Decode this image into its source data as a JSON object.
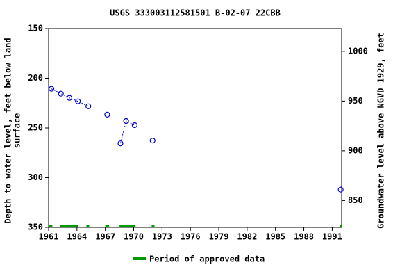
{
  "chart_data": {
    "type": "line",
    "title": "USGS 333003112581501 B-02-07 22CBB",
    "ylabel": [
      "Depth to water level, feet below land",
      "surface"
    ],
    "y2label": "Groundwater level above NGVD 1929, feet",
    "x": [
      1961.3,
      1962.3,
      1963.2,
      1964.1,
      1965.2,
      1966,
      1967.2,
      1968,
      1968.6,
      1969.2,
      1970.1,
      1971,
      1972.0,
      1980,
      1991.9
    ],
    "series": [
      {
        "name": "Depth to water level",
        "color": "#0000cc",
        "values": [
          210.6,
          215.5,
          219.7,
          223.2,
          228.2,
          null,
          236.6,
          null,
          265.5,
          243,
          247.2,
          null,
          262.7,
          null,
          312
        ]
      }
    ],
    "xlim": [
      1961,
      1992
    ],
    "xticks": [
      1961,
      1964,
      1967,
      1970,
      1973,
      1976,
      1979,
      1982,
      1985,
      1988,
      1991
    ],
    "ylim": [
      150,
      350
    ],
    "yticks": [
      150,
      200,
      250,
      300,
      350
    ],
    "y2lim": [
      1023,
      823
    ],
    "y2ticks": [
      850,
      900,
      950,
      1000
    ],
    "approved_periods": {
      "name": "Period of approved data",
      "color": "#009900",
      "ranges": [
        [
          1961,
          1961.4
        ],
        [
          1962.2,
          1964.1
        ],
        [
          1965,
          1965.3
        ],
        [
          1967,
          1967.4
        ],
        [
          1968.5,
          1970.2
        ],
        [
          1971.9,
          1972.2
        ],
        [
          1991.8,
          1992
        ]
      ]
    }
  }
}
